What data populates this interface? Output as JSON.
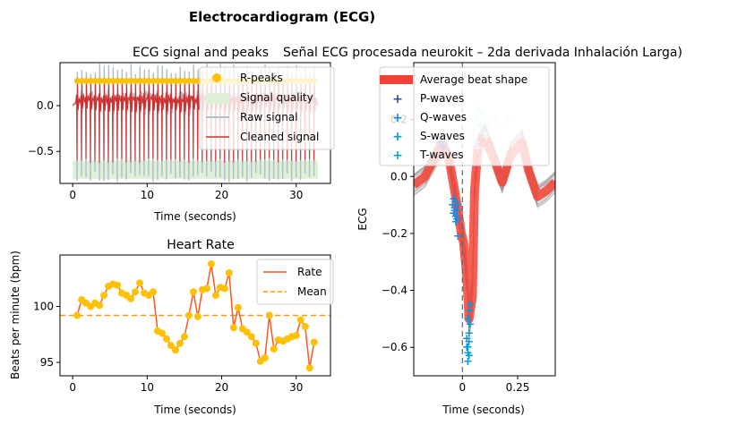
{
  "figure": {
    "suptitle": "Electrocardiogram (ECG)"
  },
  "colors": {
    "raw": "#b0bec5",
    "cleaned": "#d32f2f",
    "quality_fill": "#dff0d8",
    "rpeak": "#ffc107",
    "rate": "#ff5722",
    "mean": "#ff9800",
    "avg_beat": "#f44336",
    "beat_gray": "#8a8a8a",
    "p_wave": "#3949ab",
    "q_wave": "#1e88e5",
    "s_wave": "#039be5",
    "t_wave": "#00acc1",
    "t_wave_light": "#b2ebf2"
  },
  "chart_data": [
    {
      "id": "signal",
      "type": "line",
      "title": "ECG signal and peaks",
      "xlabel": "Time (seconds)",
      "ylabel": "",
      "xlim": [
        -1.7,
        34.6
      ],
      "ylim": [
        -0.85,
        0.47
      ],
      "xticks": [
        0,
        10,
        20,
        30
      ],
      "yticks": [
        -0.5,
        0.0
      ],
      "ytick_labels": [
        "−0.5",
        "0.0"
      ],
      "beat_times": [
        0.61,
        1.21,
        1.81,
        2.41,
        3.01,
        3.61,
        4.21,
        4.81,
        5.41,
        6.01,
        6.61,
        7.21,
        7.81,
        8.41,
        9.01,
        9.61,
        10.21,
        10.81,
        11.41,
        12.01,
        12.61,
        13.21,
        13.81,
        14.41,
        15.01,
        15.61,
        16.21,
        16.81,
        17.41,
        18.01,
        18.61,
        19.21,
        19.81,
        20.41,
        21.01,
        21.61,
        22.21,
        22.81,
        23.41,
        24.01,
        24.61,
        25.21,
        25.81,
        26.41,
        27.01,
        27.61,
        28.21,
        28.81,
        29.41,
        30.01,
        30.61,
        31.21,
        31.81,
        32.41
      ],
      "r_peak_value": 0.27,
      "raw_range": [
        -0.78,
        0.4
      ],
      "cleaned_range": [
        -0.6,
        0.28
      ],
      "quality_range": [
        -0.8,
        -0.6
      ],
      "legend": [
        "R-peaks",
        "Signal quality",
        "Raw signal",
        "Cleaned signal"
      ],
      "legend_loc": "upper right"
    },
    {
      "id": "rate",
      "type": "line",
      "title": "Heart Rate",
      "xlabel": "Time (seconds)",
      "ylabel": "Beats per minute (bpm)",
      "xlim": [
        -1.7,
        34.6
      ],
      "ylim": [
        93.8,
        104.6
      ],
      "xticks": [
        0,
        10,
        20,
        30
      ],
      "yticks": [
        95,
        100
      ],
      "series": [
        {
          "name": "Rate",
          "x": [
            0.6,
            1.2,
            1.8,
            2.4,
            3.0,
            3.6,
            4.2,
            4.8,
            5.4,
            6.0,
            6.6,
            7.2,
            7.8,
            8.4,
            9.0,
            9.6,
            10.2,
            10.8,
            11.4,
            12.0,
            12.6,
            13.2,
            13.8,
            14.4,
            15.0,
            15.6,
            16.2,
            16.8,
            17.4,
            18.0,
            18.6,
            19.2,
            19.8,
            20.4,
            21.0,
            21.6,
            22.2,
            22.8,
            23.4,
            24.0,
            24.6,
            25.2,
            25.8,
            26.4,
            27.0,
            27.6,
            28.2,
            28.8,
            29.4,
            30.0,
            30.6,
            31.2,
            31.8,
            32.4
          ],
          "y": [
            99.2,
            100.6,
            100.3,
            100.0,
            100.3,
            100.1,
            101.0,
            101.8,
            102.0,
            101.9,
            101.2,
            101.0,
            100.7,
            101.3,
            102.1,
            101.2,
            101.0,
            101.3,
            97.8,
            97.6,
            97.1,
            96.5,
            96.1,
            96.7,
            97.3,
            99.2,
            101.3,
            99.1,
            101.5,
            101.6,
            103.8,
            101.0,
            101.7,
            101.6,
            103.0,
            98.1,
            99.9,
            98.0,
            97.7,
            97.3,
            96.7,
            95.1,
            95.4,
            99.2,
            96.2,
            97.0,
            96.9,
            97.1,
            97.3,
            97.4,
            98.8,
            98.2,
            94.5,
            96.8
          ]
        }
      ],
      "mean": 99.2,
      "legend": [
        "Rate",
        "Mean"
      ],
      "legend_loc": "upper right"
    },
    {
      "id": "beats",
      "type": "line",
      "title": "Señal ECG procesada neurokit – 2da derivada Inhalación Larga)",
      "xlabel": "Time (seconds)",
      "ylabel": "ECG",
      "xlim": [
        -0.22,
        0.42
      ],
      "ylim": [
        -0.7,
        0.4
      ],
      "xticks": [
        0.0,
        0.25
      ],
      "yticks": [
        -0.6,
        -0.4,
        -0.2,
        0.0,
        0.2
      ],
      "ytick_labels": [
        "−0.6",
        "−0.4",
        "−0.2",
        "0.0",
        "0.2"
      ],
      "average_beat": {
        "x": [
          -0.22,
          -0.17,
          -0.12,
          -0.09,
          -0.06,
          -0.035,
          -0.02,
          -0.005,
          0.005,
          0.02,
          0.03,
          0.045,
          0.055,
          0.07,
          0.1,
          0.14,
          0.18,
          0.22,
          0.27,
          0.3,
          0.34,
          0.38,
          0.42
        ],
        "y": [
          -0.03,
          0.0,
          0.07,
          0.11,
          0.06,
          -0.05,
          -0.12,
          -0.2,
          -0.23,
          -0.35,
          -0.5,
          -0.42,
          -0.05,
          0.1,
          0.14,
          0.07,
          -0.02,
          0.08,
          0.12,
          0.02,
          -0.07,
          -0.05,
          -0.02
        ]
      },
      "p_waves": [
        [
          -0.09,
          0.11
        ],
        [
          -0.1,
          0.12
        ],
        [
          -0.085,
          0.1
        ]
      ],
      "q_waves": [
        [
          -0.04,
          -0.08
        ],
        [
          -0.035,
          -0.11
        ],
        [
          -0.03,
          -0.14
        ],
        [
          -0.025,
          -0.12
        ],
        [
          -0.02,
          -0.1
        ],
        [
          -0.04,
          -0.13
        ],
        [
          -0.03,
          -0.09
        ],
        [
          -0.025,
          -0.15
        ],
        [
          -0.02,
          -0.21
        ],
        [
          -0.035,
          -0.12
        ],
        [
          -0.03,
          -0.16
        ],
        [
          -0.045,
          -0.1
        ]
      ],
      "s_waves": [
        [
          0.025,
          -0.5
        ],
        [
          0.03,
          -0.55
        ],
        [
          0.025,
          -0.6
        ],
        [
          0.03,
          -0.63
        ],
        [
          0.02,
          -0.57
        ],
        [
          0.03,
          -0.47
        ],
        [
          0.025,
          -0.65
        ],
        [
          0.035,
          -0.52
        ],
        [
          0.02,
          -0.6
        ],
        [
          0.03,
          -0.58
        ],
        [
          0.025,
          -0.62
        ],
        [
          0.035,
          -0.45
        ]
      ],
      "t_waves": [
        [
          0.05,
          0.16
        ],
        [
          0.06,
          0.2
        ],
        [
          0.07,
          0.24
        ],
        [
          0.08,
          0.18
        ],
        [
          0.1,
          0.15
        ],
        [
          0.12,
          0.18
        ],
        [
          0.15,
          0.2
        ],
        [
          0.2,
          0.2
        ],
        [
          0.06,
          0.12
        ],
        [
          0.09,
          0.22
        ],
        [
          0.11,
          0.14
        ],
        [
          0.07,
          0.1
        ]
      ],
      "legend": [
        "Average beat shape",
        "P-waves",
        "Q-waves",
        "S-waves",
        "T-waves"
      ],
      "legend_loc": "upper left"
    }
  ]
}
